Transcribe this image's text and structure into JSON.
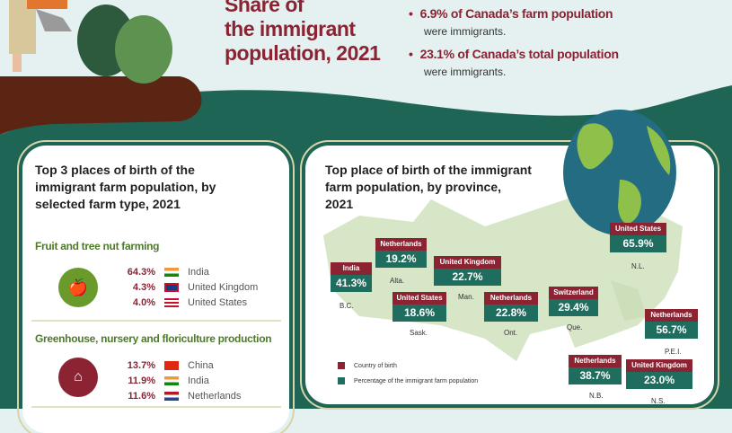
{
  "header": {
    "title_lines": [
      "Share of",
      "the immigrant",
      "population, 2021"
    ],
    "bullets": [
      {
        "headline": "6.9% of Canada’s farm population",
        "detail": "were immigrants."
      },
      {
        "headline": "23.1% of Canada’s total population",
        "detail": "were immigrants."
      }
    ]
  },
  "colors": {
    "maroon": "#8b2332",
    "dark_green": "#1e6556",
    "leaf_green": "#6a9a2c",
    "soil": "#5c2412",
    "background": "#e4f1f0"
  },
  "left_panel": {
    "title": "Top 3 places of birth of the immigrant farm population, by selected farm type, 2021",
    "sections": [
      {
        "name": "Fruit and tree nut farming",
        "icon": "apple-grapes-icon",
        "rows": [
          {
            "pct": "64.3%",
            "flag": "india-flag",
            "country": "India"
          },
          {
            "pct": "4.3%",
            "flag": "uk-flag",
            "country": "United Kingdom"
          },
          {
            "pct": "4.0%",
            "flag": "us-flag",
            "country": "United States"
          }
        ]
      },
      {
        "name": "Greenhouse, nursery and floriculture production",
        "icon": "greenhouse-icon",
        "rows": [
          {
            "pct": "13.7%",
            "flag": "china-flag",
            "country": "China"
          },
          {
            "pct": "11.9%",
            "flag": "india-flag",
            "country": "India"
          },
          {
            "pct": "11.6%",
            "flag": "netherlands-flag",
            "country": "Netherlands"
          }
        ]
      }
    ]
  },
  "right_panel": {
    "title": "Top place of birth of the immigrant farm population, by province, 2021",
    "provinces": [
      {
        "prov": "B.C.",
        "country": "India",
        "pct": "41.3%"
      },
      {
        "prov": "Alta.",
        "country": "Netherlands",
        "pct": "19.2%"
      },
      {
        "prov": "Man.",
        "country": "United Kingdom",
        "pct": "22.7%"
      },
      {
        "prov": "Sask.",
        "country": "United States",
        "pct": "18.6%"
      },
      {
        "prov": "Ont.",
        "country": "Netherlands",
        "pct": "22.8%"
      },
      {
        "prov": "Que.",
        "country": "Switzerland",
        "pct": "29.4%"
      },
      {
        "prov": "N.L.",
        "country": "United States",
        "pct": "65.9%"
      },
      {
        "prov": "P.E.I.",
        "country": "Netherlands",
        "pct": "56.7%"
      },
      {
        "prov": "N.B.",
        "country": "Netherlands",
        "pct": "38.7%"
      },
      {
        "prov": "N.S.",
        "country": "United Kingdom",
        "pct": "23.0%"
      }
    ],
    "legend": {
      "country": "Country of birth",
      "percentage": "Percentage of the immigrant farm population"
    }
  }
}
